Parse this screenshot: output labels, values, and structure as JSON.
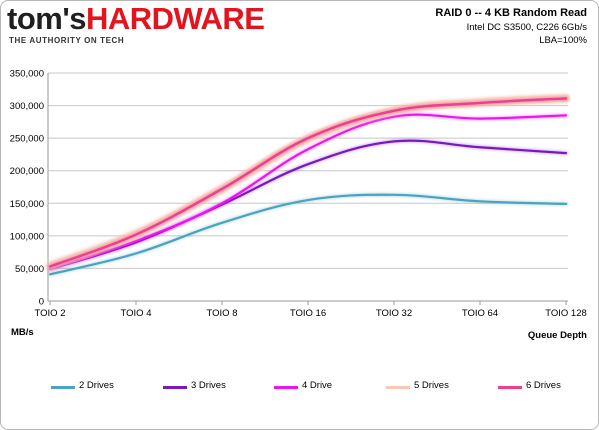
{
  "header": {
    "logo_part1": "tom's",
    "logo_part2": "HARDWARE",
    "logo_tagline": "THE AUTHORITY ON TECH",
    "title": "RAID  0 -- 4 KB Random Read",
    "subtitle_line1": "Intel DC S3500, C226 6Gb/s",
    "subtitle_line2": "LBA=100%"
  },
  "colors": {
    "logo_dark": "#1f1f1f",
    "logo_red": "#e3141e",
    "grid": "#c8c8c8",
    "axis": "#9a9a9a"
  },
  "chart_data": {
    "type": "line",
    "xlabel": "Queue Depth",
    "ylabel": "MB/s",
    "categories": [
      "TOIO 2",
      "TOIO 4",
      "TOIO 8",
      "TOIO 16",
      "TOIO 32",
      "TOIO 64",
      "TOIO 128"
    ],
    "ylim": [
      0,
      350000
    ],
    "yticks": [
      0,
      50000,
      100000,
      150000,
      200000,
      250000,
      300000,
      350000
    ],
    "ytick_labels": [
      "0",
      "50,000",
      "100,000",
      "150,000",
      "200,000",
      "250,000",
      "300,000",
      "350,000"
    ],
    "grid": "horizontal",
    "legend_position": "bottom",
    "series": [
      {
        "name": "2 Drives",
        "color": "#4ba3bf",
        "values": [
          41000,
          73000,
          120000,
          155000,
          163000,
          153000,
          149000
        ]
      },
      {
        "name": "3 Drives",
        "color": "#7a18bf",
        "values": [
          49000,
          90000,
          148000,
          210000,
          245000,
          236000,
          227000
        ]
      },
      {
        "name": "4 Drive",
        "color": "#ee14ee",
        "values": [
          50000,
          92000,
          150000,
          233000,
          283000,
          280000,
          285000
        ]
      },
      {
        "name": "5 Drives",
        "color": "#f5c9b5",
        "values": [
          54000,
          103000,
          172000,
          249000,
          292000,
          305000,
          311000
        ]
      },
      {
        "name": "6 Drives",
        "color": "#ef3f8a",
        "values": [
          53000,
          102000,
          172000,
          250000,
          292000,
          304000,
          311000
        ]
      }
    ]
  }
}
